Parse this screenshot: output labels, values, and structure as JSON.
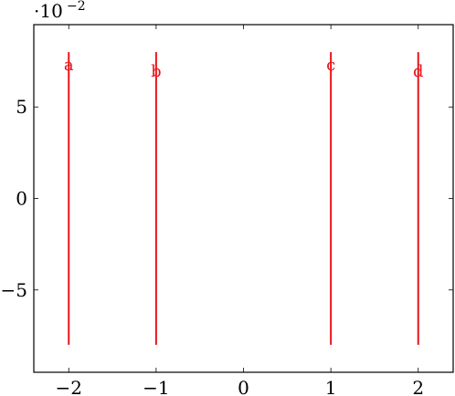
{
  "chart_data": {
    "type": "line",
    "title": "",
    "xlabel": "",
    "ylabel": "",
    "scale": {
      "base": "·10",
      "exponent": "−2"
    },
    "xlim": [
      -2.4,
      2.4
    ],
    "ylim": [
      -0.095,
      0.095
    ],
    "xticks": [
      -2,
      -1,
      0,
      1,
      2
    ],
    "xtick_labels": [
      "−2",
      "−1",
      "0",
      "1",
      "2"
    ],
    "yticks": [
      -0.05,
      0,
      0.05
    ],
    "ytick_labels": [
      "−5",
      "0",
      "5"
    ],
    "grid": false,
    "legend": "none",
    "series": [
      {
        "label": "a",
        "x": -2,
        "y": [
          -0.08,
          0.08
        ],
        "label_y": 0.073
      },
      {
        "label": "b",
        "x": -1,
        "y": [
          -0.08,
          0.08
        ],
        "label_y": 0.0695
      },
      {
        "label": "c",
        "x": 1,
        "y": [
          -0.08,
          0.08
        ],
        "label_y": 0.073
      },
      {
        "label": "d",
        "x": 2,
        "y": [
          -0.08,
          0.08
        ],
        "label_y": 0.0695
      }
    ],
    "color": "#e8151b"
  }
}
